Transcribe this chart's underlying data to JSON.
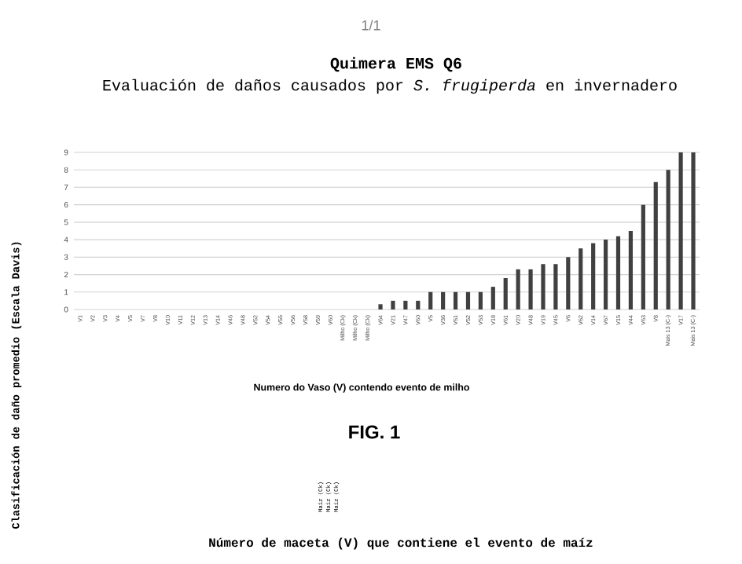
{
  "chart_data": {
    "type": "bar",
    "title": "Quimera EMS Q6",
    "subtitle": "Evaluación de daños causados por *S. frugiperda* en invernadero",
    "xlabel": "Numero do Vaso (V) contendo evento de milho",
    "ylabel": "Clasificación de daño promedio (Escala Davis)",
    "categories": [
      "V1",
      "V2",
      "V3",
      "V4",
      "V5",
      "V7",
      "V8",
      "V10",
      "V11",
      "V12",
      "V13",
      "V14",
      "V46",
      "V48",
      "V52",
      "V54",
      "V55",
      "V56",
      "V58",
      "V59",
      "V60",
      "Milho (Ck)",
      "Milho (Ck)",
      "Milho (Ck)",
      "V64",
      "V21",
      "V47",
      "V60",
      "V5",
      "V36",
      "V51",
      "V52",
      "V53",
      "V18",
      "V61",
      "V20",
      "V48",
      "V19",
      "V45",
      "V6",
      "V62",
      "V14",
      "V67",
      "V15",
      "V44",
      "V63",
      "V8",
      "Mais 13 (C-)",
      "V17",
      "Mais 13 (C-)"
    ],
    "values": [
      0,
      0,
      0,
      0,
      0,
      0,
      0,
      0,
      0,
      0,
      0,
      0,
      0,
      0,
      0,
      0,
      0,
      0,
      0,
      0,
      0,
      0,
      0,
      0,
      0.3,
      0.5,
      0.5,
      0.5,
      1,
      1,
      1,
      1,
      1,
      1.3,
      1.8,
      2.3,
      2.3,
      2.6,
      2.6,
      3,
      3.5,
      3.8,
      4,
      4.2,
      4.5,
      6,
      7.3,
      8,
      9,
      9
    ],
    "color": "#404040",
    "ylim": [
      0,
      9
    ],
    "yticks": [
      0,
      1,
      2,
      3,
      4,
      5,
      6,
      7,
      8,
      9
    ],
    "grid": "y",
    "annotations": [
      "1/1",
      "FIG. 1",
      "Maíz (Ck)",
      "Maíz (Ck)",
      "Maíz (Ck)",
      "Número de maceta (V) que contiene el evento de maíz"
    ]
  }
}
